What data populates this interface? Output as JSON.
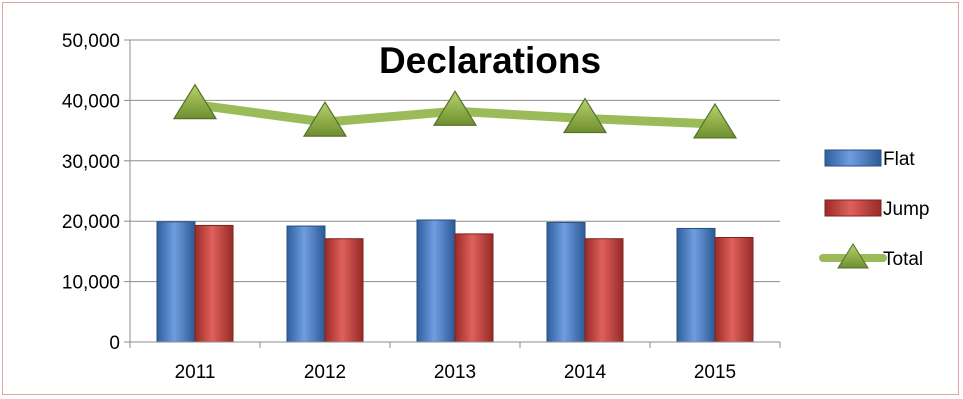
{
  "chart_data": {
    "type": "bar",
    "title": "Declarations",
    "xlabel": "",
    "ylabel": "",
    "categories": [
      "2011",
      "2012",
      "2013",
      "2014",
      "2015"
    ],
    "ylim": [
      0,
      50000
    ],
    "yticks": [
      0,
      10000,
      20000,
      30000,
      40000,
      50000
    ],
    "ytick_labels": [
      "0",
      "10,000",
      "20,000",
      "30,000",
      "40,000",
      "50,000"
    ],
    "grid": true,
    "legend_position": "right",
    "series": [
      {
        "name": "Flat",
        "kind": "bar",
        "color": "#4f81bd",
        "values": [
          19900,
          19200,
          20200,
          19800,
          18800
        ]
      },
      {
        "name": "Jump",
        "kind": "bar",
        "color": "#c0504d",
        "values": [
          19300,
          17100,
          17900,
          17100,
          17300
        ]
      },
      {
        "name": "Total",
        "kind": "line",
        "color": "#9bbb59",
        "marker": "triangle",
        "values": [
          39300,
          36400,
          38200,
          37000,
          36100
        ]
      }
    ]
  }
}
